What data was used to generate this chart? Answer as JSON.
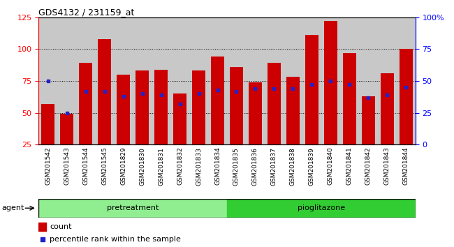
{
  "title": "GDS4132 / 231159_at",
  "samples": [
    "GSM201542",
    "GSM201543",
    "GSM201544",
    "GSM201545",
    "GSM201829",
    "GSM201830",
    "GSM201831",
    "GSM201832",
    "GSM201833",
    "GSM201834",
    "GSM201835",
    "GSM201836",
    "GSM201837",
    "GSM201838",
    "GSM201839",
    "GSM201840",
    "GSM201841",
    "GSM201842",
    "GSM201843",
    "GSM201844"
  ],
  "counts": [
    57,
    49,
    89,
    108,
    80,
    83,
    84,
    65,
    83,
    94,
    86,
    74,
    89,
    78,
    111,
    122,
    97,
    63,
    81,
    100
  ],
  "percentile_ranks": [
    50,
    25,
    42,
    42,
    38,
    40,
    39,
    32,
    40,
    43,
    42,
    44,
    44,
    44,
    47,
    50,
    47,
    37,
    39,
    45
  ],
  "pretreatment_count": 10,
  "pretreatment_label": "pretreatment",
  "pioglitazone_label": "pioglitazone",
  "agent_label": "agent",
  "bar_color": "#cc0000",
  "dot_color": "#2222cc",
  "ylim": [
    25,
    125
  ],
  "yticks_left": [
    25,
    50,
    75,
    100,
    125
  ],
  "right_tick_positions": [
    25,
    50,
    75,
    100,
    125
  ],
  "right_tick_labels": [
    "0",
    "25",
    "50",
    "75",
    "100%"
  ],
  "grid_values": [
    50,
    75,
    100
  ],
  "bar_bg_color": "#c8c8c8",
  "pretreatment_bg": "#90ee90",
  "pioglitazone_bg": "#32cd32",
  "legend_count_label": "count",
  "legend_pct_label": "percentile rank within the sample"
}
